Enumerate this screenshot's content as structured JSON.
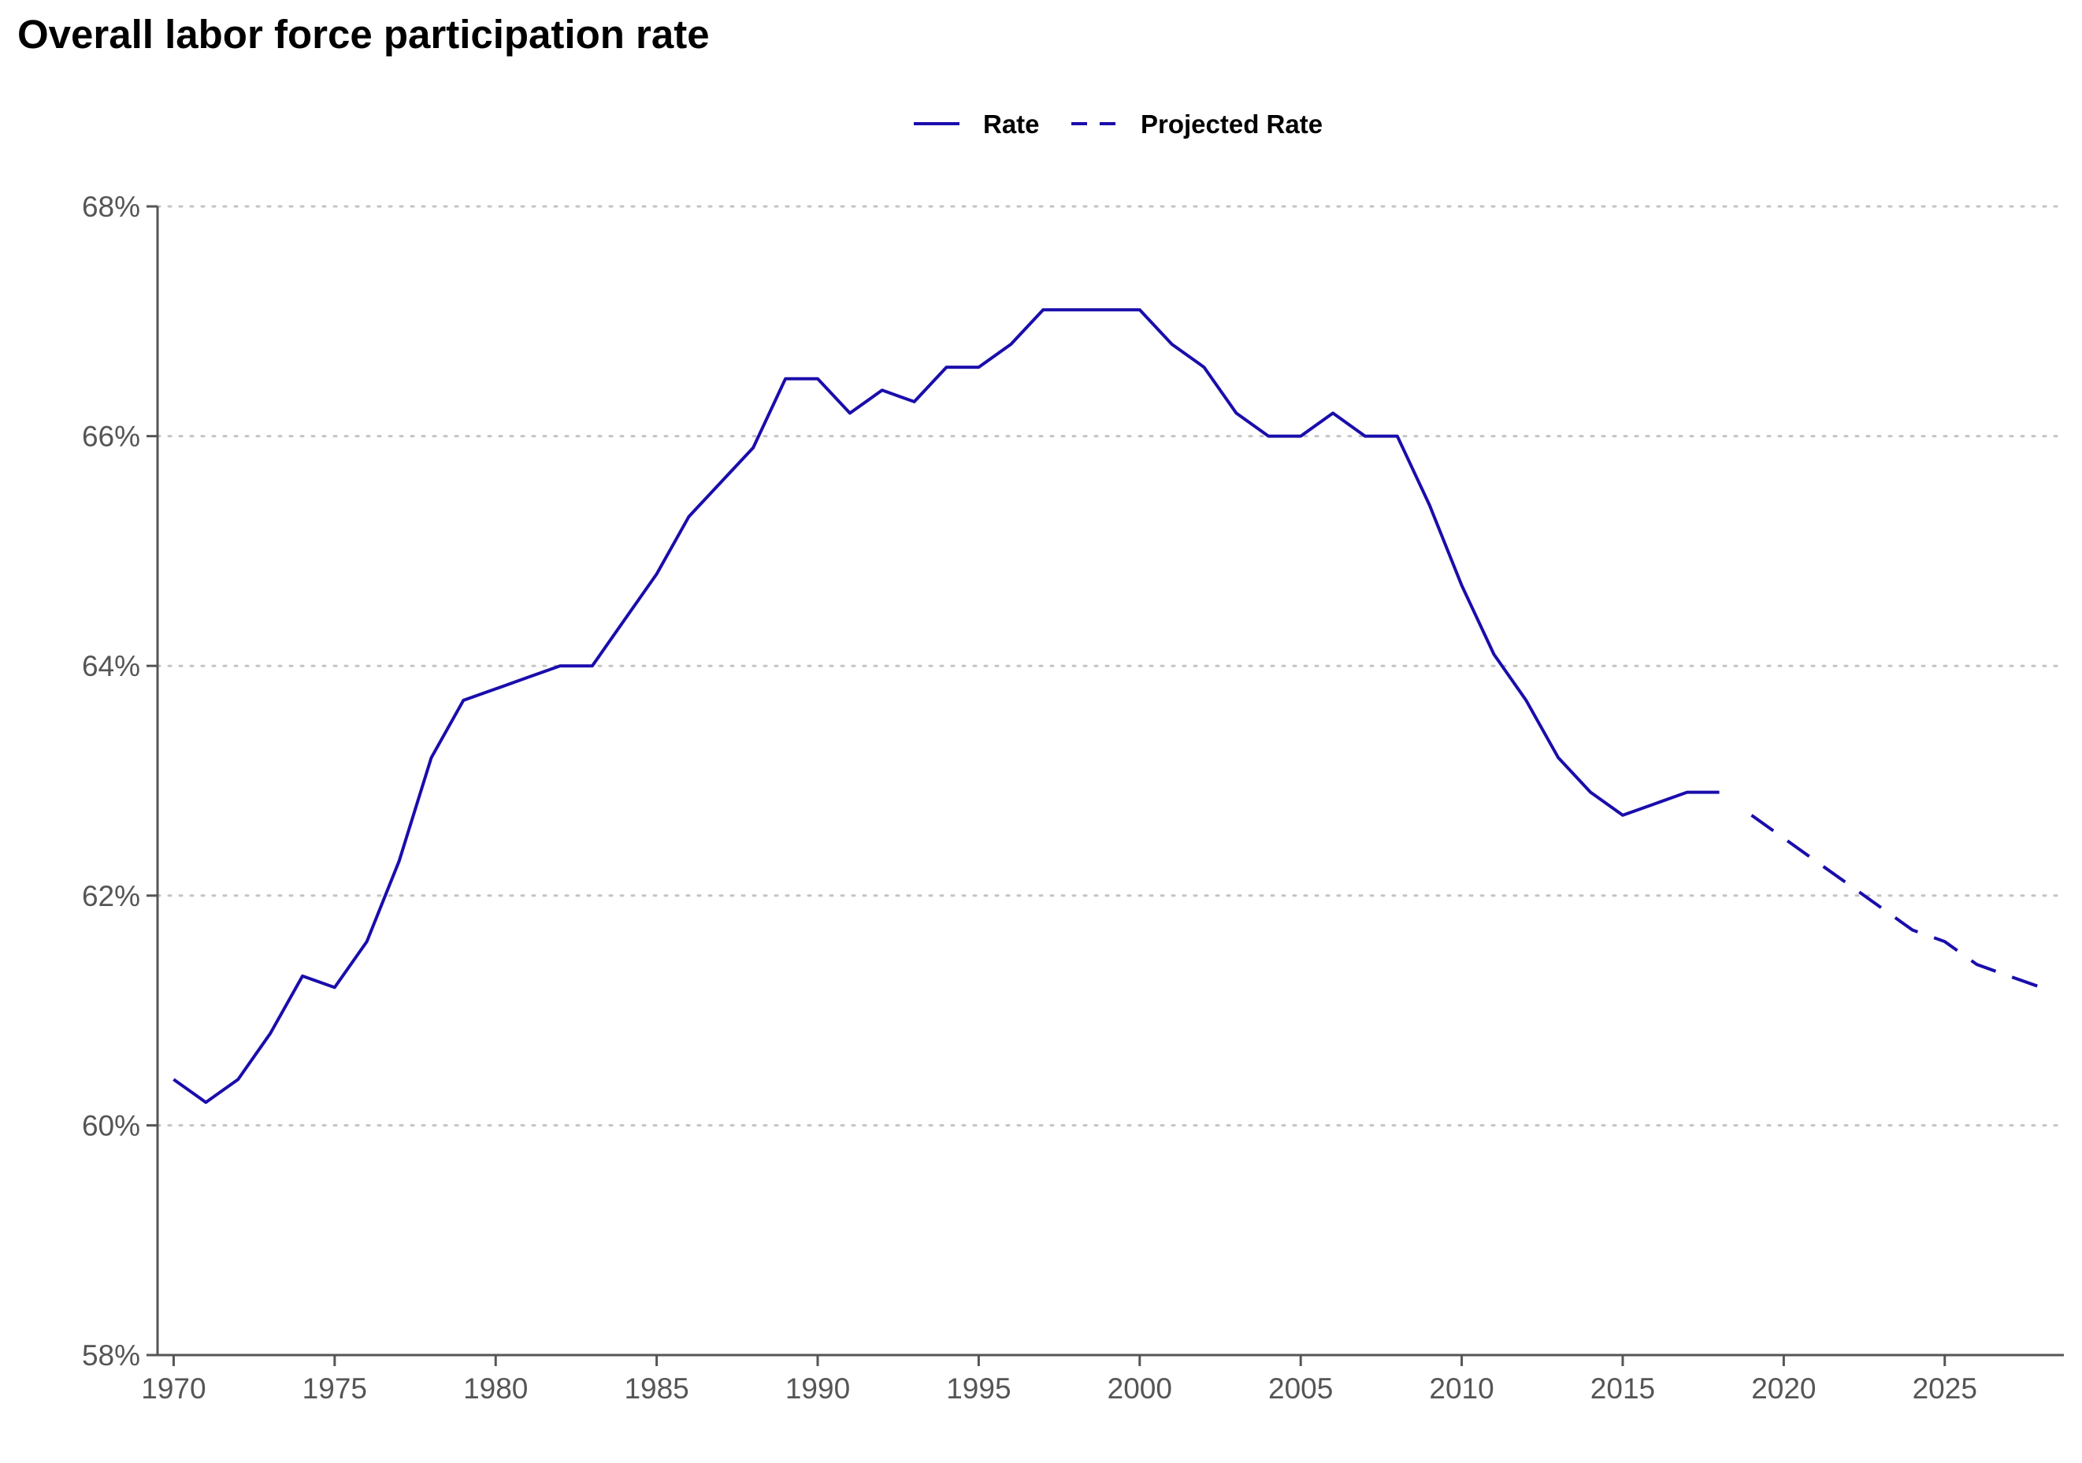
{
  "chart_data": {
    "type": "line",
    "title": "Overall labor force participation rate",
    "xlabel": "",
    "ylabel": "",
    "xlim": [
      1969.5,
      2028.7
    ],
    "ylim": [
      58,
      68
    ],
    "x_ticks": [
      1970,
      1975,
      1980,
      1985,
      1990,
      1995,
      2000,
      2005,
      2010,
      2015,
      2020,
      2025
    ],
    "y_ticks": [
      58,
      60,
      62,
      64,
      66,
      68
    ],
    "y_tick_labels": [
      "58%",
      "60%",
      "62%",
      "64%",
      "66%",
      "68%"
    ],
    "grid": "horizontal dotted",
    "legend_position": "top-center",
    "series": [
      {
        "name": "Rate",
        "style": "solid",
        "color": "#1a0dab",
        "x": [
          1970,
          1971,
          1972,
          1973,
          1974,
          1975,
          1976,
          1977,
          1978,
          1979,
          1980,
          1981,
          1982,
          1983,
          1984,
          1985,
          1986,
          1987,
          1988,
          1989,
          1990,
          1991,
          1992,
          1993,
          1994,
          1995,
          1996,
          1997,
          1998,
          1999,
          2000,
          2001,
          2002,
          2003,
          2004,
          2005,
          2006,
          2007,
          2008,
          2009,
          2010,
          2011,
          2012,
          2013,
          2014,
          2015,
          2016,
          2017,
          2018
        ],
        "values": [
          60.4,
          60.2,
          60.4,
          60.8,
          61.3,
          61.2,
          61.6,
          62.3,
          63.2,
          63.7,
          63.8,
          63.9,
          64.0,
          64.0,
          64.4,
          64.8,
          65.3,
          65.6,
          65.9,
          66.5,
          66.5,
          66.2,
          66.4,
          66.3,
          66.6,
          66.6,
          66.8,
          67.1,
          67.1,
          67.1,
          67.1,
          66.8,
          66.6,
          66.2,
          66.0,
          66.0,
          66.2,
          66.0,
          66.0,
          65.4,
          64.7,
          64.1,
          63.7,
          63.2,
          62.9,
          62.7,
          62.8,
          62.9,
          62.9
        ]
      },
      {
        "name": "Projected Rate",
        "style": "dashed",
        "color": "#1a0dab",
        "x": [
          2019,
          2020,
          2021,
          2022,
          2023,
          2024,
          2025,
          2026,
          2027,
          2028
        ],
        "values": [
          62.7,
          62.5,
          62.3,
          62.1,
          61.9,
          61.7,
          61.6,
          61.4,
          61.3,
          61.2
        ]
      }
    ]
  }
}
